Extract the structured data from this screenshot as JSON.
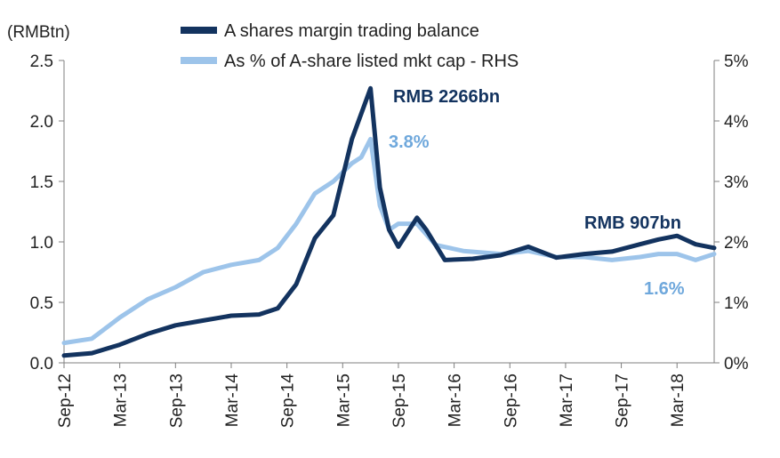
{
  "chart_data": {
    "type": "line",
    "ylabel_left": "(RMBtn)",
    "ylim_left": [
      0,
      2.5
    ],
    "ylim_right": [
      0,
      5
    ],
    "left_ticks": [
      "0.0",
      "0.5",
      "1.0",
      "1.5",
      "2.0",
      "2.5"
    ],
    "right_ticks": [
      "0%",
      "1%",
      "2%",
      "3%",
      "4%",
      "5%"
    ],
    "x_ticks": [
      "Sep-12",
      "Mar-13",
      "Sep-13",
      "Mar-14",
      "Sep-14",
      "Mar-15",
      "Sep-15",
      "Mar-16",
      "Sep-16",
      "Mar-17",
      "Sep-17",
      "Mar-18"
    ],
    "grid": false,
    "legend_position": "top",
    "colors": {
      "balance": "#13335f",
      "pct": "#9dc4ea",
      "axis": "#7f7f7f"
    },
    "series": [
      {
        "name": "A shares margin trading balance",
        "axis": "left",
        "x": [
          "2012-09",
          "2012-12",
          "2013-03",
          "2013-06",
          "2013-09",
          "2013-12",
          "2014-03",
          "2014-06",
          "2014-08",
          "2014-10",
          "2014-12",
          "2015-02",
          "2015-04",
          "2015-06",
          "2015-07",
          "2015-08",
          "2015-09",
          "2015-11",
          "2015-12",
          "2016-02",
          "2016-05",
          "2016-08",
          "2016-11",
          "2017-02",
          "2017-05",
          "2017-08",
          "2017-11",
          "2018-01",
          "2018-03",
          "2018-05",
          "2018-07"
        ],
        "values": [
          0.06,
          0.08,
          0.15,
          0.24,
          0.31,
          0.35,
          0.39,
          0.4,
          0.45,
          0.65,
          1.03,
          1.22,
          1.85,
          2.27,
          1.45,
          1.1,
          0.96,
          1.2,
          1.1,
          0.85,
          0.86,
          0.89,
          0.96,
          0.87,
          0.9,
          0.92,
          0.98,
          1.02,
          1.05,
          0.98,
          0.95
        ]
      },
      {
        "name": "As % of A-share listed mkt cap - RHS",
        "axis": "right",
        "x": [
          "2012-09",
          "2012-12",
          "2013-03",
          "2013-06",
          "2013-09",
          "2013-12",
          "2014-03",
          "2014-06",
          "2014-08",
          "2014-10",
          "2014-12",
          "2015-02",
          "2015-04",
          "2015-05",
          "2015-06",
          "2015-07",
          "2015-08",
          "2015-09",
          "2015-11",
          "2016-01",
          "2016-04",
          "2016-08",
          "2016-11",
          "2017-02",
          "2017-05",
          "2017-08",
          "2017-11",
          "2018-01",
          "2018-03",
          "2018-05",
          "2018-07"
        ],
        "values": [
          0.33,
          0.4,
          0.75,
          1.05,
          1.25,
          1.5,
          1.62,
          1.7,
          1.9,
          2.3,
          2.8,
          3.0,
          3.3,
          3.4,
          3.7,
          2.6,
          2.2,
          2.3,
          2.3,
          1.95,
          1.85,
          1.8,
          1.85,
          1.75,
          1.75,
          1.7,
          1.75,
          1.8,
          1.8,
          1.7,
          1.8
        ]
      }
    ],
    "annotations": [
      {
        "text": "RMB 2266bn",
        "series": 0
      },
      {
        "text": "3.8%",
        "series": 1
      },
      {
        "text": "RMB 907bn",
        "series": 0
      },
      {
        "text": "1.6%",
        "series": 1
      }
    ]
  }
}
